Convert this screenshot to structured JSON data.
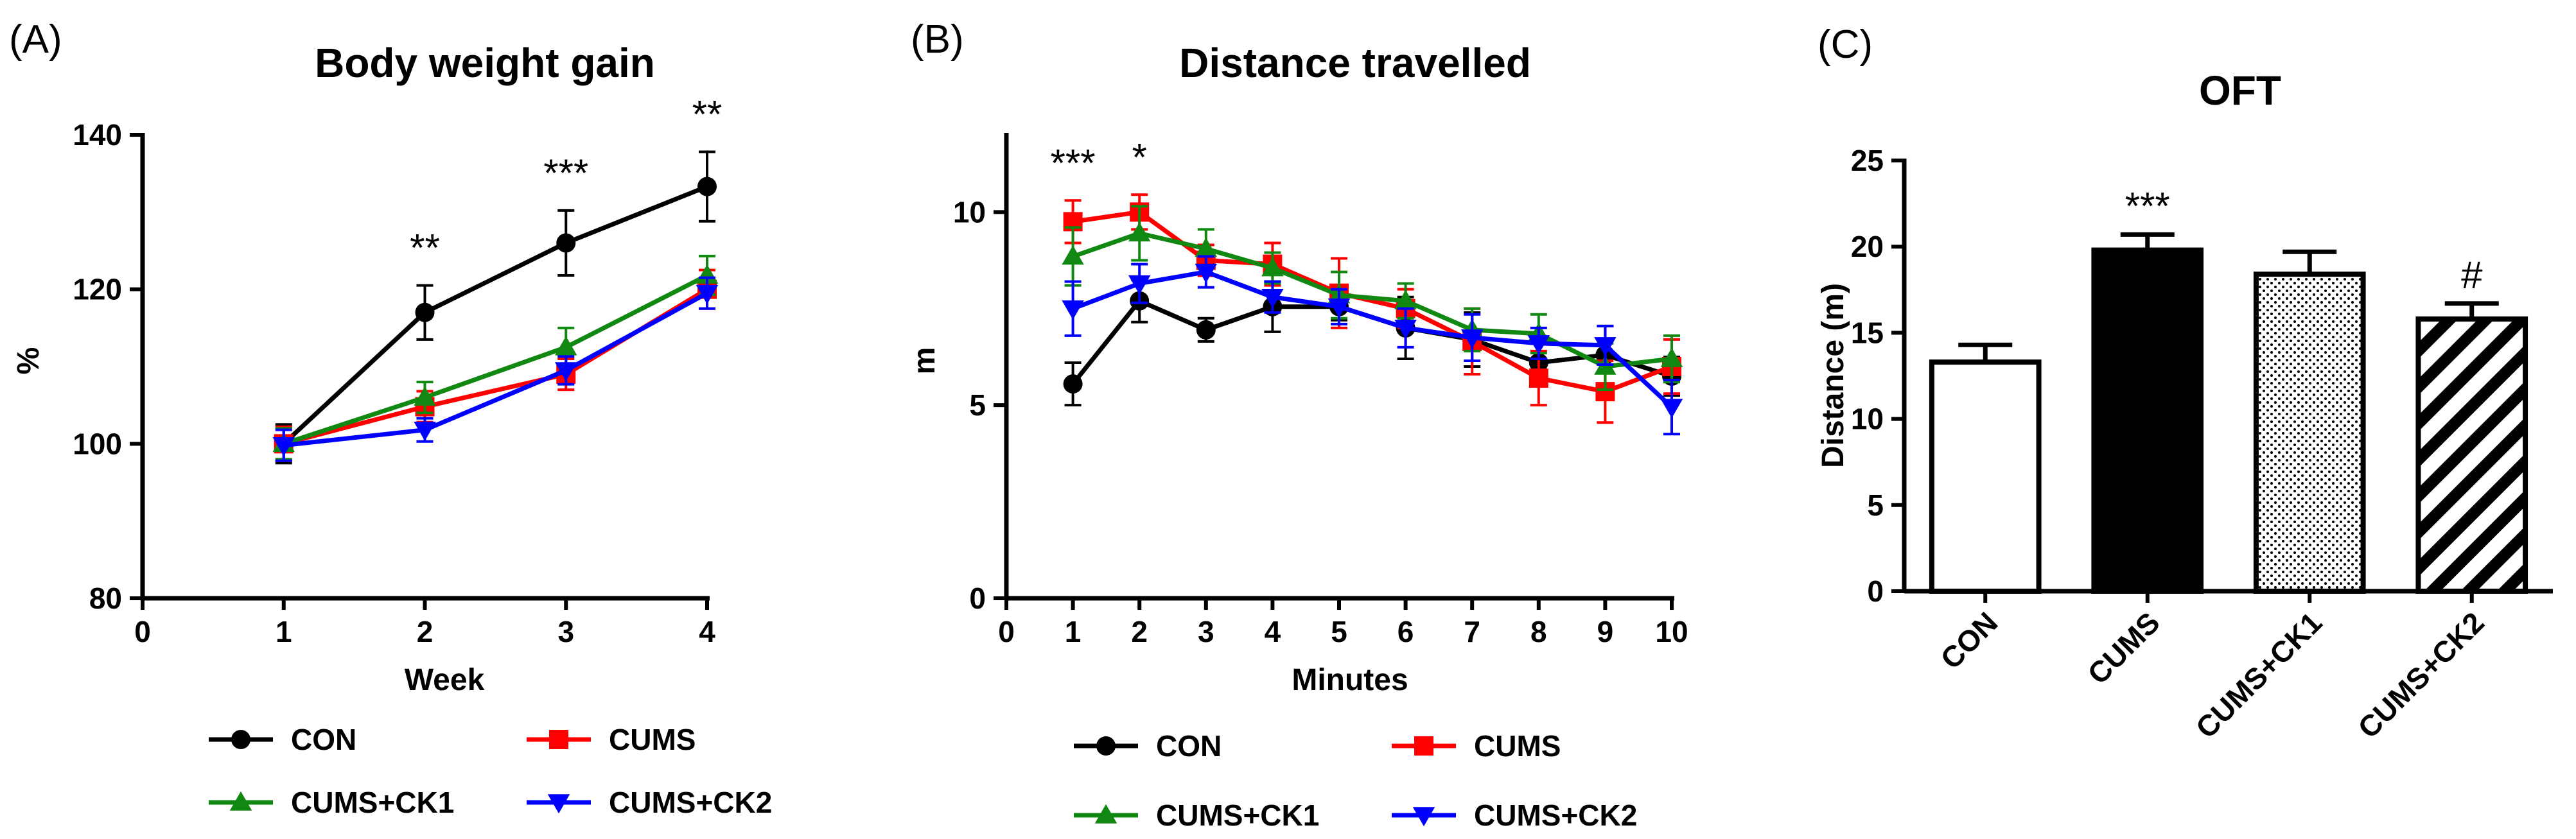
{
  "chart_data": [
    {
      "panel": "(A)",
      "type": "line",
      "title": "Body weight gain",
      "xlabel": "Week",
      "ylabel": "%",
      "xlim": [
        0,
        4
      ],
      "ylim": [
        80,
        140
      ],
      "x_ticks": [
        "0",
        "1",
        "2",
        "3",
        "4"
      ],
      "y_ticks": [
        "80",
        "100",
        "120",
        "140"
      ],
      "x": [
        1,
        2,
        3,
        4
      ],
      "series": [
        {
          "name": "CON",
          "color": "#000000",
          "marker": "circle",
          "values": [
            100,
            117,
            126,
            133.3
          ],
          "errors": [
            2.5,
            3.5,
            4.2,
            4.5
          ]
        },
        {
          "name": "CUMS",
          "color": "#ff0000",
          "marker": "square",
          "values": [
            100,
            104.8,
            109,
            120
          ],
          "errors": [
            2.2,
            2.0,
            2.0,
            2.5
          ]
        },
        {
          "name": "CUMS+CK1",
          "color": "#118811",
          "marker": "triangle-up",
          "values": [
            100,
            106,
            112.5,
            121.8
          ],
          "errors": [
            2.0,
            2.0,
            2.5,
            2.5
          ]
        },
        {
          "name": "CUMS+CK2",
          "color": "#0000ff",
          "marker": "triangle-down",
          "values": [
            99.8,
            101.8,
            109.5,
            119.5
          ],
          "errors": [
            2.0,
            1.5,
            1.8,
            2.0
          ]
        }
      ],
      "annotations": [
        {
          "x": 2,
          "text": "**"
        },
        {
          "x": 3,
          "text": "***"
        },
        {
          "x": 4,
          "text": "**"
        }
      ]
    },
    {
      "panel": "(B)",
      "type": "line",
      "title": "Distance travelled",
      "xlabel": "Minutes",
      "ylabel": "m",
      "xlim": [
        0,
        10
      ],
      "ylim": [
        0,
        12
      ],
      "x_ticks": [
        "0",
        "1",
        "2",
        "3",
        "4",
        "5",
        "6",
        "7",
        "8",
        "9",
        "10"
      ],
      "y_ticks": [
        "0",
        "5",
        "10"
      ],
      "x": [
        1,
        2,
        3,
        4,
        5,
        6,
        7,
        8,
        9,
        10
      ],
      "series": [
        {
          "name": "CON",
          "color": "#000000",
          "marker": "circle",
          "values": [
            5.55,
            7.7,
            6.95,
            7.55,
            7.55,
            7.0,
            6.7,
            6.1,
            6.3,
            5.75
          ],
          "errors": [
            0.55,
            0.55,
            0.3,
            0.65,
            0.35,
            0.8,
            0.7,
            0.5,
            0.75,
            0.5
          ]
        },
        {
          "name": "CUMS",
          "color": "#ff0000",
          "marker": "square",
          "values": [
            9.75,
            10.0,
            8.75,
            8.65,
            7.9,
            7.5,
            6.65,
            5.7,
            5.35,
            6.0
          ],
          "errors": [
            0.55,
            0.45,
            0.4,
            0.55,
            0.9,
            0.5,
            0.85,
            0.7,
            0.8,
            0.7
          ]
        },
        {
          "name": "CUMS+CK1",
          "color": "#118811",
          "marker": "triangle-up",
          "values": [
            8.85,
            9.45,
            9.05,
            8.55,
            7.85,
            7.7,
            6.95,
            6.85,
            6.0,
            6.2
          ],
          "errors": [
            0.75,
            0.7,
            0.5,
            0.4,
            0.6,
            0.45,
            0.55,
            0.5,
            0.6,
            0.6
          ]
        },
        {
          "name": "CUMS+CK2",
          "color": "#0000ff",
          "marker": "triangle-down",
          "values": [
            7.5,
            8.15,
            8.45,
            7.8,
            7.55,
            7.0,
            6.75,
            6.6,
            6.55,
            4.95
          ],
          "errors": [
            0.7,
            0.5,
            0.4,
            0.4,
            0.45,
            0.5,
            0.6,
            0.4,
            0.5,
            0.7
          ]
        }
      ],
      "annotations": [
        {
          "x": 1,
          "text": "***"
        },
        {
          "x": 2,
          "text": "*"
        }
      ]
    },
    {
      "panel": "(C)",
      "type": "bar",
      "title": "OFT",
      "xlabel": "",
      "ylabel": "Distance (m)",
      "ylim": [
        0,
        25
      ],
      "y_ticks": [
        "0",
        "5",
        "10",
        "15",
        "20",
        "25"
      ],
      "categories": [
        "CON",
        "CUMS",
        "CUMS+CK1",
        "CUMS+CK2"
      ],
      "values": [
        13.3,
        19.8,
        18.4,
        15.8
      ],
      "errors": [
        1.0,
        0.9,
        1.3,
        0.9
      ],
      "fills": [
        "white",
        "black",
        "dotted",
        "hatched"
      ],
      "annotations": [
        {
          "category": "CUMS",
          "text": "***"
        },
        {
          "category": "CUMS+CK2",
          "text": "#"
        }
      ]
    }
  ]
}
